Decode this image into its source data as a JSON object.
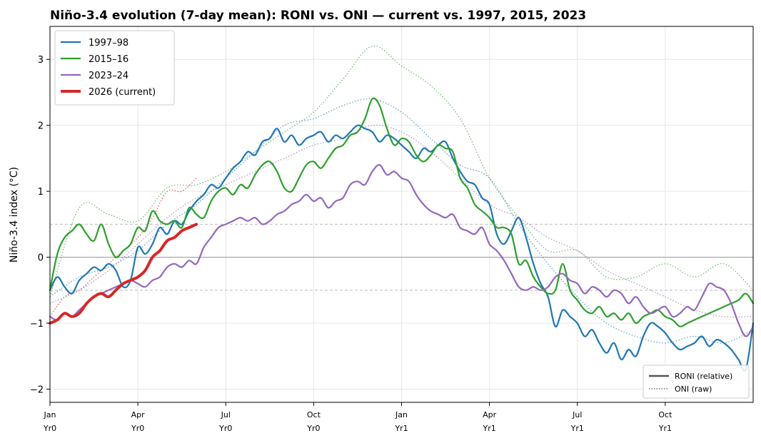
{
  "chart_data": {
    "type": "line",
    "title": "Niño-3.4 evolution (7-day mean): RONI vs. ONI — current vs. 1997, 2015, 2023",
    "ylabel": "Niño-3.4 index (°C)",
    "xlabel": "",
    "ylim": [
      -2.2,
      3.5
    ],
    "xlim": [
      0,
      24
    ],
    "x_unit": "months since Jan Yr0",
    "yticks": [
      -2,
      -1,
      0,
      1,
      2,
      3
    ],
    "xticks": [
      {
        "x": 0,
        "line1": "Jan",
        "line2": "Yr0"
      },
      {
        "x": 3,
        "line1": "Apr",
        "line2": "Yr0"
      },
      {
        "x": 6,
        "line1": "Jul",
        "line2": "Yr0"
      },
      {
        "x": 9,
        "line1": "Oct",
        "line2": "Yr0"
      },
      {
        "x": 12,
        "line1": "Jan",
        "line2": "Yr1"
      },
      {
        "x": 15,
        "line1": "Apr",
        "line2": "Yr1"
      },
      {
        "x": 18,
        "line1": "Jul",
        "line2": "Yr1"
      },
      {
        "x": 21,
        "line1": "Oct",
        "line2": "Yr1"
      }
    ],
    "grid": true,
    "reference_lines": [
      {
        "y": 0,
        "style": "solid",
        "color": "#999999"
      },
      {
        "y": 0.5,
        "style": "dashed",
        "color": "#bbbbbb"
      },
      {
        "y": -0.5,
        "style": "dashed",
        "color": "#bbbbbb"
      }
    ],
    "legend_placement": "top-left",
    "style_legend_placement": "bottom-right",
    "style_legend": [
      {
        "label": "RONI (relative)",
        "dash": "solid",
        "color": "#555555"
      },
      {
        "label": "ONI (raw)",
        "dash": "dotted",
        "color": "#555555"
      }
    ],
    "series": [
      {
        "name": "1997–98",
        "color": "#1f77b4",
        "x": [
          0,
          0.25,
          0.5,
          0.75,
          1,
          1.25,
          1.5,
          1.75,
          2,
          2.25,
          2.5,
          2.75,
          3,
          3.25,
          3.5,
          3.75,
          4,
          4.25,
          4.5,
          4.75,
          5,
          5.25,
          5.5,
          5.75,
          6,
          6.25,
          6.5,
          6.75,
          7,
          7.25,
          7.5,
          7.75,
          8,
          8.25,
          8.5,
          8.75,
          9,
          9.25,
          9.5,
          9.75,
          10,
          10.25,
          10.5,
          10.75,
          11,
          11.25,
          11.5,
          11.75,
          12,
          12.25,
          12.5,
          12.75,
          13,
          13.25,
          13.5,
          13.75,
          14,
          14.25,
          14.5,
          14.75,
          15,
          15.25,
          15.5,
          15.75,
          16,
          16.25,
          16.5,
          16.75,
          17,
          17.25,
          17.5,
          17.75,
          18,
          18.25,
          18.5,
          18.75,
          19,
          19.25,
          19.5,
          19.75,
          20,
          20.25,
          20.5,
          20.75,
          21,
          21.25,
          21.5,
          21.75,
          22,
          22.25,
          22.5,
          22.75,
          23,
          23.25,
          23.5,
          23.75,
          24
        ],
        "values": [
          -0.5,
          -0.3,
          -0.45,
          -0.55,
          -0.35,
          -0.25,
          -0.15,
          -0.2,
          -0.1,
          -0.2,
          -0.45,
          -0.35,
          0.15,
          0.05,
          0.2,
          0.45,
          0.35,
          0.55,
          0.5,
          0.7,
          0.85,
          0.95,
          1.1,
          1.05,
          1.2,
          1.35,
          1.45,
          1.6,
          1.55,
          1.75,
          1.8,
          1.95,
          1.75,
          1.85,
          1.7,
          1.8,
          1.85,
          1.9,
          1.75,
          1.85,
          1.8,
          1.9,
          2.0,
          1.95,
          1.9,
          1.75,
          1.85,
          1.8,
          1.7,
          1.6,
          1.5,
          1.65,
          1.6,
          1.7,
          1.75,
          1.5,
          1.3,
          1.15,
          1.1,
          0.9,
          0.8,
          0.35,
          0.2,
          0.4,
          0.6,
          0.3,
          -0.1,
          -0.4,
          -0.6,
          -1.05,
          -0.8,
          -0.9,
          -1.0,
          -1.2,
          -1.1,
          -1.3,
          -1.45,
          -1.3,
          -1.55,
          -1.4,
          -1.5,
          -1.2,
          -1.0,
          -1.05,
          -1.15,
          -1.3,
          -1.4,
          -1.35,
          -1.3,
          -1.2,
          -1.35,
          -1.25,
          -1.3,
          -1.4,
          -1.55,
          -1.7,
          -1.0
        ]
      },
      {
        "name": "2015–16",
        "color": "#2ca02c",
        "x": [
          0,
          0.25,
          0.5,
          0.75,
          1,
          1.25,
          1.5,
          1.75,
          2,
          2.25,
          2.5,
          2.75,
          3,
          3.25,
          3.5,
          3.75,
          4,
          4.25,
          4.5,
          4.75,
          5,
          5.25,
          5.5,
          5.75,
          6,
          6.25,
          6.5,
          6.75,
          7,
          7.25,
          7.5,
          7.75,
          8,
          8.25,
          8.5,
          8.75,
          9,
          9.25,
          9.5,
          9.75,
          10,
          10.25,
          10.5,
          10.75,
          11,
          11.25,
          11.5,
          11.75,
          12,
          12.25,
          12.5,
          12.75,
          13,
          13.25,
          13.5,
          13.75,
          14,
          14.25,
          14.5,
          14.75,
          15,
          15.25,
          15.5,
          15.75,
          16,
          16.25,
          16.5,
          16.75,
          17,
          17.25,
          17.5,
          17.75,
          18,
          18.25,
          18.5,
          18.75,
          19,
          19.25,
          19.5,
          19.75,
          20,
          20.25,
          20.5,
          20.75,
          21,
          21.25,
          21.5,
          21.75,
          22,
          22.25,
          22.5,
          22.75,
          23,
          23.25,
          23.5,
          23.75,
          24
        ],
        "values": [
          -0.5,
          0.05,
          0.3,
          0.4,
          0.5,
          0.35,
          0.25,
          0.5,
          0.2,
          0.0,
          0.1,
          0.2,
          0.45,
          0.4,
          0.7,
          0.55,
          0.5,
          0.55,
          0.45,
          0.75,
          0.65,
          0.6,
          0.85,
          1.0,
          1.05,
          0.95,
          1.1,
          1.05,
          1.25,
          1.4,
          1.45,
          1.3,
          1.05,
          1.0,
          1.2,
          1.4,
          1.45,
          1.35,
          1.5,
          1.65,
          1.7,
          1.85,
          1.9,
          2.1,
          2.4,
          2.3,
          1.95,
          1.7,
          1.8,
          1.75,
          1.55,
          1.45,
          1.55,
          1.7,
          1.65,
          1.6,
          1.2,
          1.05,
          0.8,
          0.7,
          0.6,
          0.45,
          0.45,
          0.35,
          -0.1,
          -0.05,
          -0.3,
          -0.45,
          -0.55,
          -0.5,
          -0.1,
          -0.5,
          -0.65,
          -0.8,
          -0.85,
          -0.75,
          -0.9,
          -0.85,
          -0.95,
          -0.85,
          -1.0,
          -0.9,
          -0.85,
          -0.8,
          -0.9,
          -0.95,
          -1.05,
          -1.0,
          -0.95,
          -0.9,
          -0.85,
          -0.8,
          -0.75,
          -0.7,
          -0.65,
          -0.55,
          -0.7
        ]
      },
      {
        "name": "2023–24",
        "color": "#9467bd",
        "x": [
          0,
          0.25,
          0.5,
          0.75,
          1,
          1.25,
          1.5,
          1.75,
          2,
          2.25,
          2.5,
          2.75,
          3,
          3.25,
          3.5,
          3.75,
          4,
          4.25,
          4.5,
          4.75,
          5,
          5.25,
          5.5,
          5.75,
          6,
          6.25,
          6.5,
          6.75,
          7,
          7.25,
          7.5,
          7.75,
          8,
          8.25,
          8.5,
          8.75,
          9,
          9.25,
          9.5,
          9.75,
          10,
          10.25,
          10.5,
          10.75,
          11,
          11.25,
          11.5,
          11.75,
          12,
          12.25,
          12.5,
          12.75,
          13,
          13.25,
          13.5,
          13.75,
          14,
          14.25,
          14.5,
          14.75,
          15,
          15.25,
          15.5,
          15.75,
          16,
          16.25,
          16.5,
          16.75,
          17,
          17.25,
          17.5,
          17.75,
          18,
          18.25,
          18.5,
          18.75,
          19,
          19.25,
          19.5,
          19.75,
          20,
          20.25,
          20.5,
          20.75,
          21,
          21.25,
          21.5,
          21.75,
          22,
          22.25,
          22.5,
          22.75,
          23,
          23.25,
          23.5,
          23.75,
          24
        ],
        "values": [
          -0.9,
          -0.95,
          -0.85,
          -0.9,
          -0.8,
          -0.7,
          -0.6,
          -0.55,
          -0.5,
          -0.45,
          -0.4,
          -0.35,
          -0.4,
          -0.45,
          -0.35,
          -0.3,
          -0.15,
          -0.1,
          -0.15,
          -0.05,
          -0.1,
          0.15,
          0.3,
          0.45,
          0.5,
          0.55,
          0.6,
          0.55,
          0.6,
          0.5,
          0.55,
          0.65,
          0.7,
          0.8,
          0.85,
          0.95,
          0.85,
          0.9,
          0.75,
          0.85,
          0.9,
          1.1,
          1.15,
          1.1,
          1.3,
          1.4,
          1.25,
          1.3,
          1.2,
          1.15,
          0.95,
          0.8,
          0.7,
          0.65,
          0.6,
          0.65,
          0.45,
          0.4,
          0.35,
          0.45,
          0.2,
          0.1,
          -0.05,
          -0.25,
          -0.45,
          -0.5,
          -0.45,
          -0.5,
          -0.45,
          -0.3,
          -0.25,
          -0.35,
          -0.4,
          -0.55,
          -0.45,
          -0.5,
          -0.6,
          -0.5,
          -0.55,
          -0.7,
          -0.6,
          -0.75,
          -0.85,
          -0.8,
          -0.75,
          -0.9,
          -0.85,
          -0.75,
          -0.8,
          -0.6,
          -0.4,
          -0.45,
          -0.5,
          -0.7,
          -1.0,
          -1.2,
          -1.05
        ]
      },
      {
        "name": "2026 (current)",
        "color": "#d62728",
        "bold": true,
        "x": [
          0,
          0.25,
          0.5,
          0.75,
          1,
          1.25,
          1.5,
          1.75,
          2,
          2.25,
          2.5,
          2.75,
          3,
          3.25,
          3.5,
          3.75,
          4,
          4.25,
          4.5,
          4.75,
          5
        ],
        "values": [
          -1.0,
          -0.95,
          -0.85,
          -0.9,
          -0.85,
          -0.7,
          -0.6,
          -0.55,
          -0.6,
          -0.5,
          -0.4,
          -0.35,
          -0.3,
          -0.2,
          0.0,
          0.1,
          0.25,
          0.3,
          0.4,
          0.45,
          0.5
        ]
      }
    ],
    "oni_series": [
      {
        "name": "1997–98",
        "color": "#1f77b4",
        "x": [
          0,
          1,
          2,
          3,
          4,
          5,
          6,
          7,
          8,
          9,
          10,
          11,
          12,
          13,
          14,
          15,
          16,
          17,
          18,
          19,
          20,
          21,
          22,
          23,
          24
        ],
        "values": [
          -0.6,
          -0.3,
          -0.15,
          0.1,
          0.5,
          0.8,
          1.2,
          1.6,
          2.0,
          2.1,
          2.3,
          2.4,
          2.2,
          1.8,
          1.4,
          1.2,
          0.5,
          -0.1,
          -0.6,
          -1.0,
          -1.2,
          -1.3,
          -1.2,
          -1.3,
          -1.1
        ]
      },
      {
        "name": "2015–16",
        "color": "#2ca02c",
        "x": [
          0,
          1,
          2,
          3,
          4,
          5,
          6,
          7,
          8,
          9,
          10,
          11,
          12,
          13,
          14,
          15,
          16,
          17,
          18,
          19,
          20,
          21,
          22,
          23,
          24
        ],
        "values": [
          -0.6,
          0.75,
          0.65,
          0.55,
          1.05,
          1.1,
          1.3,
          1.6,
          1.9,
          2.2,
          2.7,
          3.2,
          2.9,
          2.6,
          2.1,
          1.2,
          0.6,
          0.1,
          0.1,
          -0.3,
          -0.3,
          -0.1,
          -0.3,
          -0.1,
          -0.5
        ]
      },
      {
        "name": "2023–24",
        "color": "#9467bd",
        "x": [
          0,
          1,
          2,
          3,
          4,
          5,
          6,
          7,
          8,
          9,
          10,
          11,
          12,
          13,
          14,
          15,
          16,
          17,
          18,
          19,
          20,
          21,
          22,
          23,
          24
        ],
        "values": [
          -0.7,
          -0.5,
          -0.2,
          0.2,
          0.6,
          0.9,
          1.1,
          1.3,
          1.5,
          1.7,
          1.8,
          2.0,
          1.9,
          1.6,
          1.2,
          0.8,
          0.6,
          0.3,
          0.1,
          -0.2,
          -0.4,
          -0.6,
          -0.8,
          -0.9,
          -0.9
        ]
      },
      {
        "name": "2026 (current)",
        "color": "#d62728",
        "x": [
          0,
          0.5,
          1,
          1.5,
          2,
          2.5,
          3,
          3.5,
          4,
          4.5,
          5
        ],
        "values": [
          -0.9,
          -0.6,
          -0.5,
          -0.3,
          -0.1,
          0.1,
          0.3,
          0.6,
          1.0,
          1.0,
          1.2
        ]
      }
    ]
  }
}
